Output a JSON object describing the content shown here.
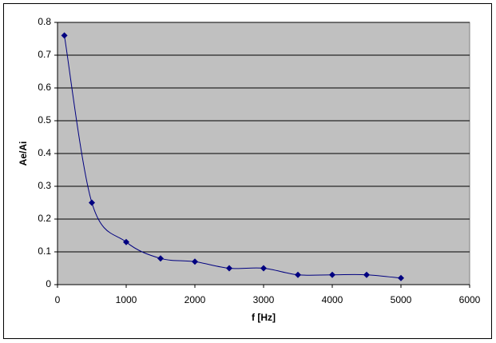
{
  "chart_data": {
    "type": "scatter",
    "smooth": true,
    "x_label": "f [Hz]",
    "y_label": "Ae/Ai",
    "series": [
      {
        "color": "#000080",
        "x": [
          100,
          500,
          1000,
          1500,
          2000,
          2500,
          3000,
          3500,
          4000,
          4500,
          5000
        ],
        "values": [
          0.76,
          0.25,
          0.13,
          0.08,
          0.07,
          0.05,
          0.05,
          0.03,
          0.03,
          0.03,
          0.02
        ]
      }
    ],
    "xlim": [
      0,
      6000
    ],
    "xticks": [
      0,
      1000,
      2000,
      3000,
      4000,
      5000,
      6000
    ],
    "ylim": [
      0,
      0.8
    ],
    "yticks": [
      0,
      0.1,
      0.2,
      0.3,
      0.4,
      0.5,
      0.6,
      0.7,
      0.8
    ],
    "grid": true,
    "plot_background": "#c0c0c0"
  }
}
